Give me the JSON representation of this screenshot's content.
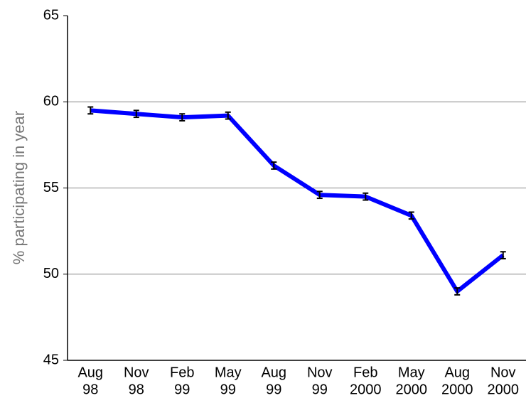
{
  "chart_data": {
    "type": "line",
    "y_label": "% participating in year",
    "categories": [
      [
        "Aug",
        "98"
      ],
      [
        "Nov",
        "98"
      ],
      [
        "Feb",
        "99"
      ],
      [
        "May",
        "99"
      ],
      [
        "Aug",
        "99"
      ],
      [
        "Nov",
        "99"
      ],
      [
        "Feb",
        "2000"
      ],
      [
        "May",
        "2000"
      ],
      [
        "Aug",
        "2000"
      ],
      [
        "Nov",
        "2000"
      ]
    ],
    "series": [
      {
        "color": "#0000ff",
        "values": [
          59.5,
          59.3,
          59.1,
          59.2,
          56.3,
          54.6,
          54.5,
          53.4,
          49.0,
          51.1
        ],
        "errors": [
          0.2,
          0.2,
          0.2,
          0.2,
          0.2,
          0.2,
          0.2,
          0.2,
          0.2,
          0.2
        ]
      }
    ],
    "ylim": [
      45,
      65
    ],
    "yticks": [
      45,
      50,
      55,
      60,
      65
    ],
    "grid": true
  }
}
